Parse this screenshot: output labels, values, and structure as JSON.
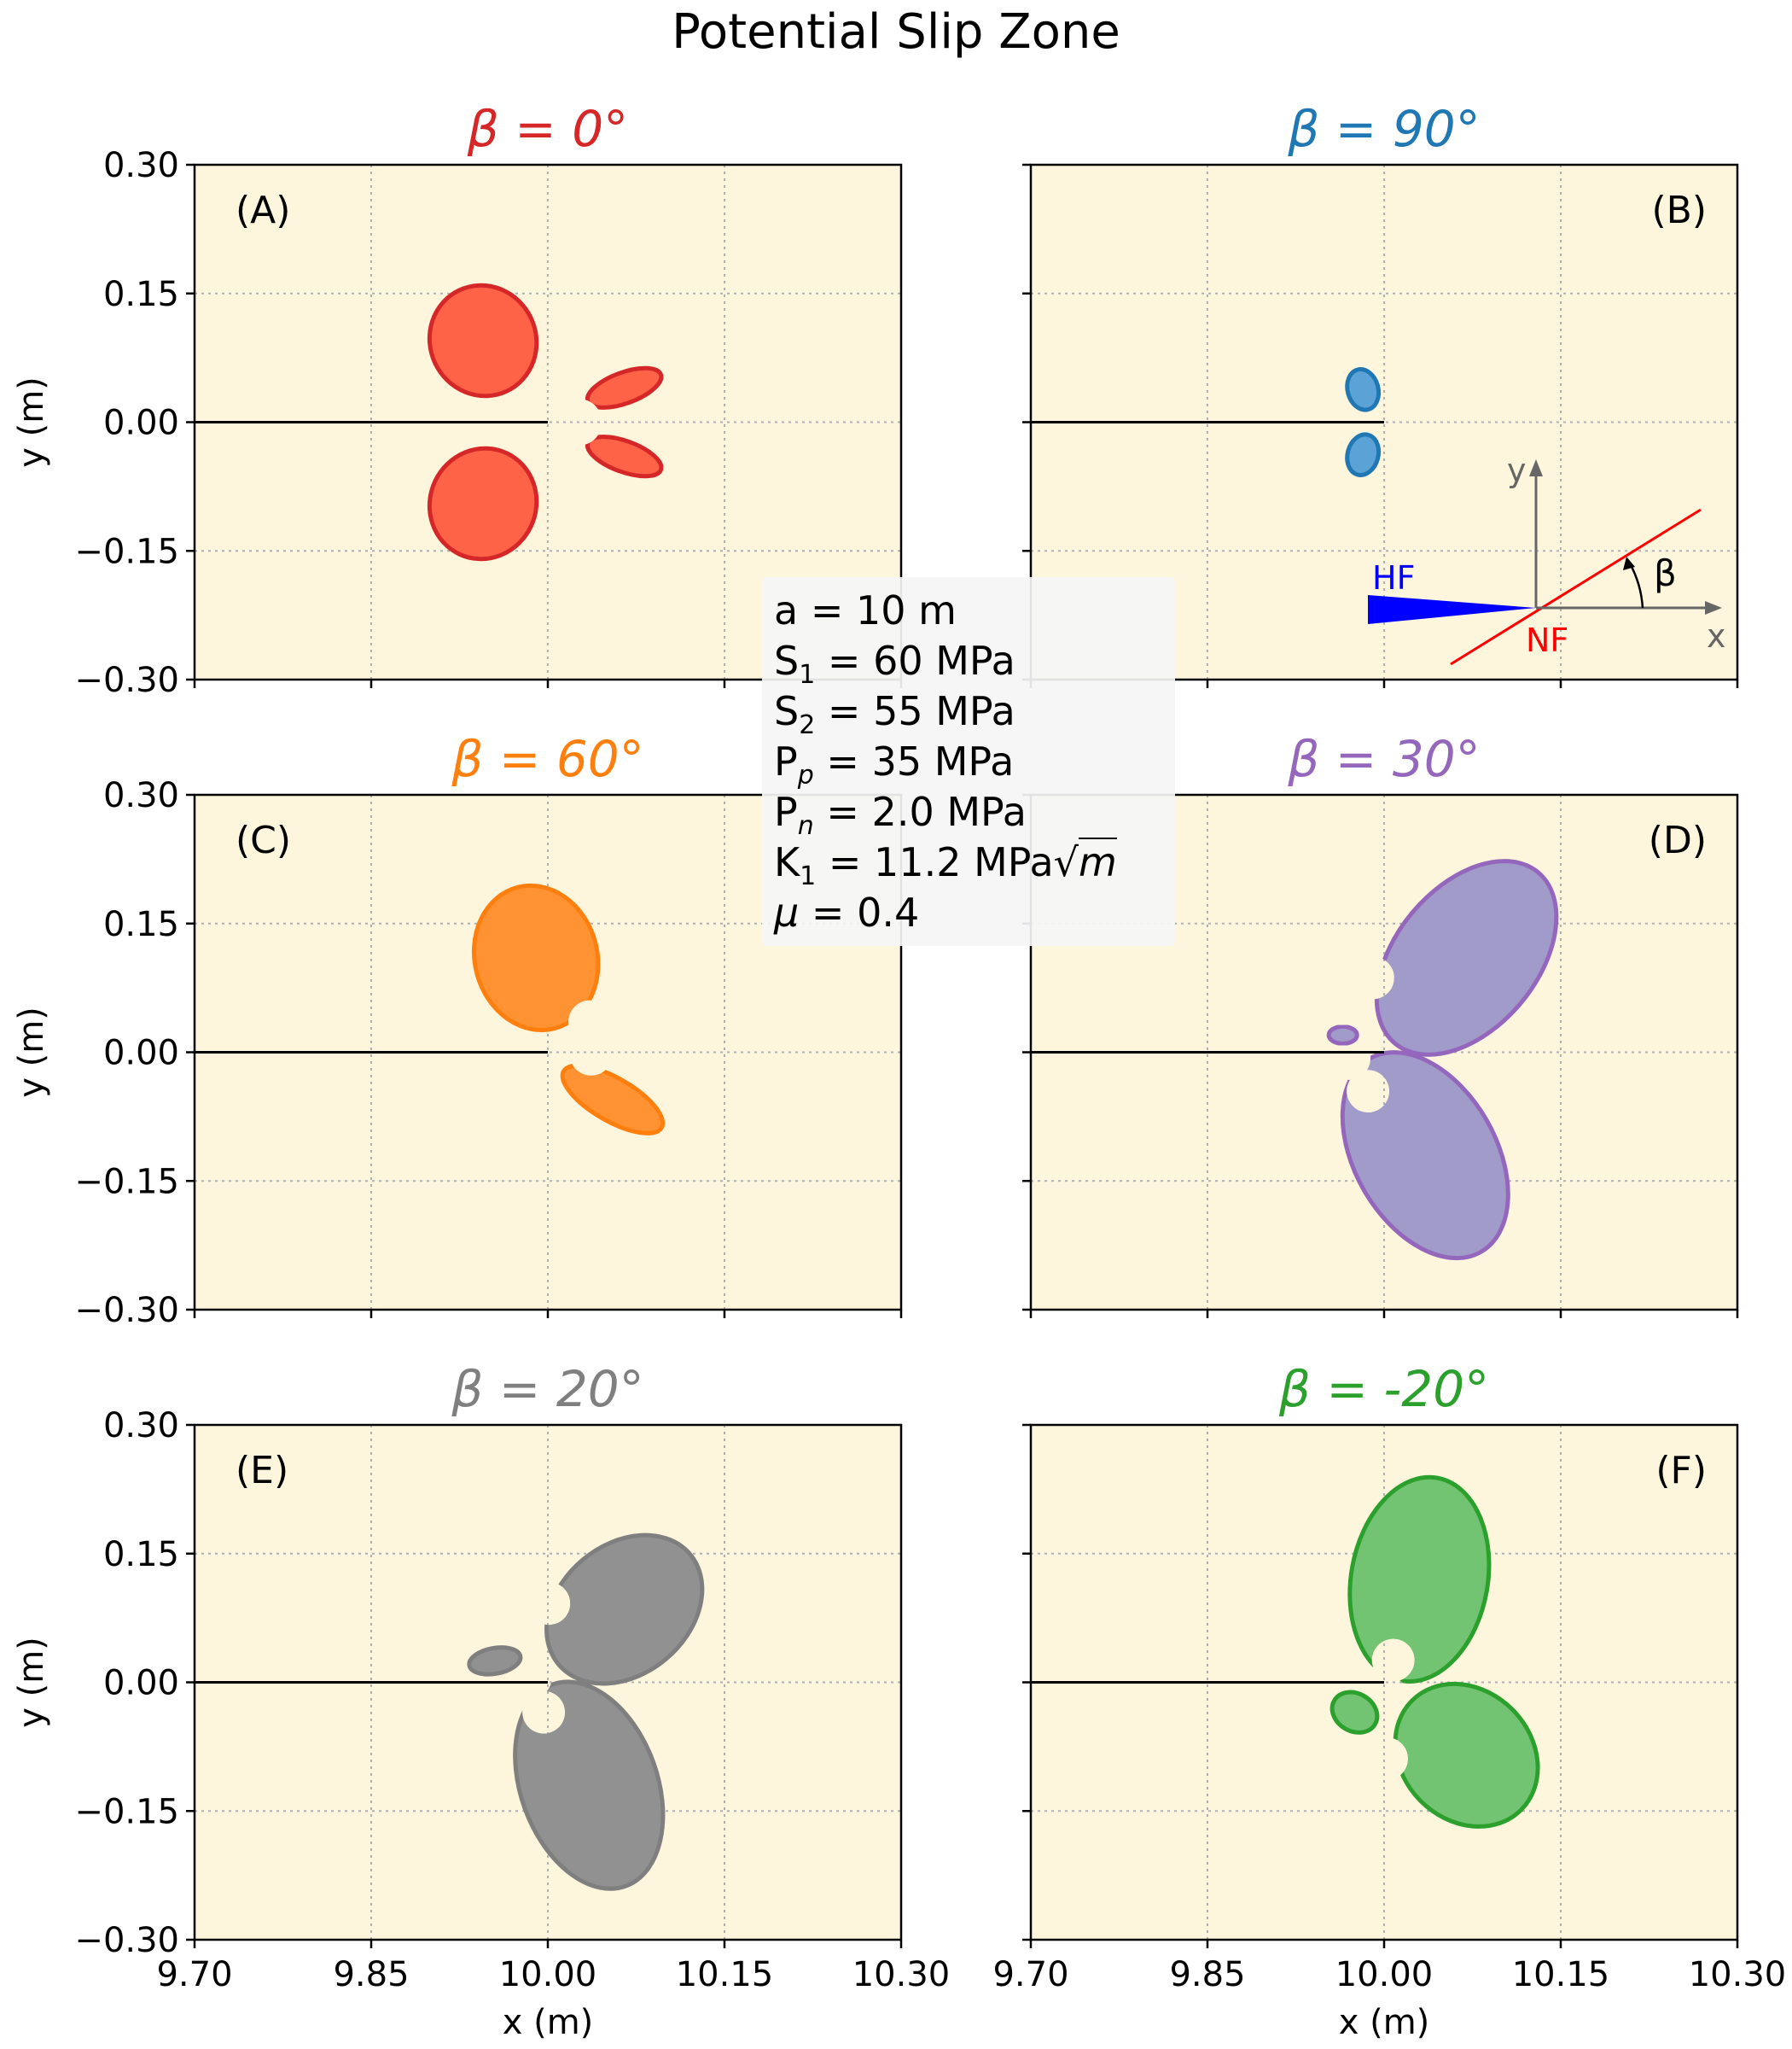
{
  "figure": {
    "title": "Potential Slip Zone",
    "xlabel": "x (m)",
    "ylabel": "y (m)",
    "background_color": "#fdf5dc",
    "xticks": [
      "9.70",
      "9.85",
      "10.00",
      "10.15",
      "10.30"
    ],
    "yticks": [
      "0.30",
      "0.15",
      "0.00",
      "−0.15",
      "−0.30"
    ]
  },
  "info_box": {
    "lines": [
      {
        "label": "a",
        "sub": "",
        "value": " = 10 m"
      },
      {
        "label": "S",
        "sub": "1",
        "value": " = 60 MPa"
      },
      {
        "label": "S",
        "sub": "2",
        "value": " = 55 MPa"
      },
      {
        "label": "P",
        "sub": "p",
        "value": " = 35 MPa"
      },
      {
        "label": "P",
        "sub": "n",
        "value": " = 2.0 MPa"
      },
      {
        "label": "K",
        "sub": "1",
        "value": " = 11.2 MPa"
      },
      {
        "label": "μ",
        "sub": "",
        "value": "  = 0.4"
      }
    ],
    "sqrt_symbol": "√",
    "sqrt_var": "m"
  },
  "inset": {
    "hf_label": "HF",
    "nf_label": "NF",
    "x_label": "x",
    "y_label": "y",
    "beta_label": "β",
    "hf_color": "#0000ff",
    "nf_color": "#ff0000"
  },
  "chart_data": [
    {
      "panel": "(A)",
      "title": "β = 0°",
      "beta_deg": 0,
      "color": "#d62728",
      "fill": "#ff6347",
      "type": "area",
      "xlim": [
        9.7,
        10.3
      ],
      "ylim": [
        -0.3,
        0.3
      ],
      "crack": {
        "x": [
          9.7,
          10.0
        ],
        "y": [
          0,
          0
        ]
      },
      "zone_extent": {
        "x": [
          9.94,
          10.09
        ],
        "y": [
          -0.16,
          0.16
        ]
      }
    },
    {
      "panel": "(B)",
      "title": "β = 90°",
      "beta_deg": 90,
      "color": "#1f77b4",
      "fill": "#5ba3d6",
      "type": "area",
      "xlim": [
        9.7,
        10.3
      ],
      "ylim": [
        -0.3,
        0.3
      ],
      "crack": {
        "x": [
          9.7,
          10.0
        ],
        "y": [
          0,
          0
        ]
      },
      "zone_extent": {
        "x": [
          9.97,
          10.0
        ],
        "y": [
          -0.065,
          0.065
        ]
      }
    },
    {
      "panel": "(C)",
      "title": "β = 60°",
      "beta_deg": 60,
      "color": "#ff7f0e",
      "fill": "#ff9233",
      "type": "area",
      "xlim": [
        9.7,
        10.3
      ],
      "ylim": [
        -0.3,
        0.3
      ],
      "crack": {
        "x": [
          9.7,
          10.0
        ],
        "y": [
          0,
          0
        ]
      },
      "zone_extent": {
        "x": [
          9.95,
          10.09
        ],
        "y": [
          -0.115,
          0.205
        ]
      }
    },
    {
      "panel": "(D)",
      "title": "β = 30°",
      "beta_deg": 30,
      "color": "#9467bd",
      "fill": "#a09bc8",
      "type": "area",
      "xlim": [
        9.7,
        10.3
      ],
      "ylim": [
        -0.3,
        0.3
      ],
      "crack": {
        "x": [
          9.7,
          10.0
        ],
        "y": [
          0,
          0
        ]
      },
      "zone_extent": {
        "x": [
          9.98,
          10.15
        ],
        "y": [
          -0.26,
          0.235
        ]
      }
    },
    {
      "panel": "(E)",
      "title": "β = 20°",
      "beta_deg": 20,
      "color": "#7f7f7f",
      "fill": "#919191",
      "type": "area",
      "xlim": [
        9.7,
        10.3
      ],
      "ylim": [
        -0.3,
        0.3
      ],
      "crack": {
        "x": [
          9.7,
          10.0
        ],
        "y": [
          0,
          0
        ]
      },
      "zone_extent": {
        "x": [
          9.94,
          10.15
        ],
        "y": [
          -0.255,
          0.18
        ]
      }
    },
    {
      "panel": "(F)",
      "title": "β = -20°",
      "beta_deg": -20,
      "color": "#2ca02c",
      "fill": "#72c472",
      "type": "area",
      "xlim": [
        9.7,
        10.3
      ],
      "ylim": [
        -0.3,
        0.3
      ],
      "crack": {
        "x": [
          9.7,
          10.0
        ],
        "y": [
          0,
          0
        ]
      },
      "zone_extent": {
        "x": [
          9.97,
          10.15
        ],
        "y": [
          -0.19,
          0.255
        ]
      }
    }
  ]
}
